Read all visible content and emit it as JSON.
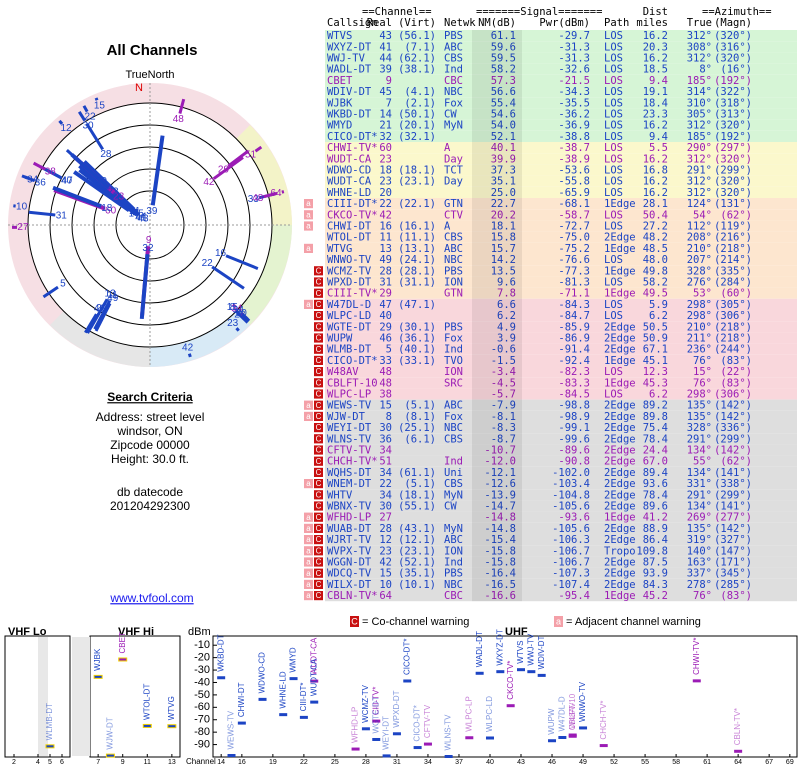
{
  "left": {
    "title": "All Channels",
    "north_caption": "TrueNorth",
    "north": "N",
    "criteria_title": "Search Criteria",
    "criteria": [
      "Address: street level",
      "windsor, ON",
      "Zipcode 00000",
      "Height: 30.0 ft."
    ],
    "datecode_label": "db datecode",
    "datecode": "201204292300",
    "link": "www.tvfool.com"
  },
  "table": {
    "group_headers": [
      "==Channel==",
      "=======Signal=======",
      "Dist",
      "==Azimuth=="
    ],
    "columns": [
      "Callsign",
      "Real",
      "(Virt)",
      "Netwk",
      "NM(dB)",
      "Pwr(dBm)",
      "Path",
      "miles",
      "True",
      "(Magn)"
    ],
    "rows": [
      [
        "WTVS",
        "43",
        "(56.1)",
        "PBS",
        "61.1",
        "-29.7",
        "LOS",
        "16.2",
        "312°",
        "(320°)"
      ],
      [
        "WXYZ-DT",
        "41",
        "(7.1)",
        "ABC",
        "59.6",
        "-31.3",
        "LOS",
        "20.3",
        "308°",
        "(316°)"
      ],
      [
        "WWJ-TV",
        "44",
        "(62.1)",
        "CBS",
        "59.5",
        "-31.3",
        "LOS",
        "16.2",
        "312°",
        "(320°)"
      ],
      [
        "WADL-DT",
        "39",
        "(38.1)",
        "Ind",
        "58.2",
        "-32.6",
        "LOS",
        "18.5",
        "8°",
        "(16°)"
      ],
      [
        "CBET",
        "9",
        null,
        "CBC",
        "57.3",
        "-21.5",
        "LOS",
        "9.4",
        "185°",
        "(192°)"
      ],
      [
        "WDIV-DT",
        "45",
        "(4.1)",
        "NBC",
        "56.6",
        "-34.3",
        "LOS",
        "19.1",
        "314°",
        "(322°)"
      ],
      [
        "WJBK",
        "7",
        "(2.1)",
        "Fox",
        "55.4",
        "-35.5",
        "LOS",
        "18.4",
        "310°",
        "(318°)"
      ],
      [
        "WKBD-DT",
        "14",
        "(50.1)",
        "CW",
        "54.6",
        "-36.2",
        "LOS",
        "23.3",
        "305°",
        "(313°)"
      ],
      [
        "WMYD",
        "21",
        "(20.1)",
        "MyN",
        "54.0",
        "-36.9",
        "LOS",
        "16.2",
        "312°",
        "(320°)"
      ],
      [
        "CICO-DT*",
        "32",
        "(32.1)",
        null,
        "52.1",
        "-38.8",
        "LOS",
        "9.4",
        "185°",
        "(192°)"
      ],
      [
        "CHWI-TV*",
        "60",
        null,
        "A",
        "40.1",
        "-38.7",
        "LOS",
        "5.5",
        "290°",
        "(297°)"
      ],
      [
        "WUDT-CA",
        "23",
        null,
        "Day",
        "39.9",
        "-38.9",
        "LOS",
        "16.2",
        "312°",
        "(320°)"
      ],
      [
        "WDWO-CD",
        "18",
        "(18.1)",
        "TCT",
        "37.3",
        "-53.6",
        "LOS",
        "16.8",
        "291°",
        "(299°)"
      ],
      [
        "WUDT-CA",
        "23",
        "(23.1)",
        "Day",
        "35.1",
        "-55.8",
        "LOS",
        "16.2",
        "312°",
        "(320°)"
      ],
      [
        "WHNE-LD",
        "20",
        null,
        null,
        "25.0",
        "-65.9",
        "LOS",
        "16.2",
        "312°",
        "(320°)"
      ],
      [
        "CIII-DT*",
        "22",
        "(22.1)",
        "GTN",
        "22.7",
        "-68.1",
        "1Edge",
        "28.1",
        "124°",
        "(131°)"
      ],
      [
        "CKCO-TV*",
        "42",
        null,
        "CTV",
        "20.2",
        "-58.7",
        "LOS",
        "50.4",
        "54°",
        "(62°)"
      ],
      [
        "CHWI-DT",
        "16",
        "(16.1)",
        "A",
        "18.1",
        "-72.7",
        "LOS",
        "27.2",
        "112°",
        "(119°)"
      ],
      [
        "WTOL-DT",
        "11",
        "(11.1)",
        "CBS",
        "15.8",
        "-75.0",
        "2Edge",
        "48.2",
        "208°",
        "(216°)"
      ],
      [
        "WTVG",
        "13",
        "(13.1)",
        "ABC",
        "15.7",
        "-75.2",
        "1Edge",
        "48.5",
        "210°",
        "(218°)"
      ],
      [
        "WNWO-TV",
        "49",
        "(24.1)",
        "NBC",
        "14.2",
        "-76.6",
        "LOS",
        "48.0",
        "207°",
        "(214°)"
      ],
      [
        "WCMZ-TV",
        "28",
        "(28.1)",
        "PBS",
        "13.5",
        "-77.3",
        "1Edge",
        "49.8",
        "328°",
        "(335°)"
      ],
      [
        "WPXD-DT",
        "31",
        "(31.1)",
        "ION",
        "9.6",
        "-81.3",
        "LOS",
        "58.2",
        "276°",
        "(284°)"
      ],
      [
        "CIII-TV*",
        "29",
        null,
        "GTN",
        "7.8",
        "-71.1",
        "1Edge",
        "49.5",
        "53°",
        "(60°)"
      ],
      [
        "W47DL-D",
        "47",
        "(47.1)",
        null,
        "6.6",
        "-84.3",
        "LOS",
        "5.9",
        "298°",
        "(305°)"
      ],
      [
        "WLPC-LD",
        "40",
        null,
        null,
        "6.2",
        "-84.7",
        "LOS",
        "6.2",
        "298°",
        "(306°)"
      ],
      [
        "WGTE-DT",
        "29",
        "(30.1)",
        "PBS",
        "4.9",
        "-85.9",
        "2Edge",
        "50.5",
        "210°",
        "(218°)"
      ],
      [
        "WUPW",
        "46",
        "(36.1)",
        "Fox",
        "3.9",
        "-86.9",
        "2Edge",
        "50.9",
        "211°",
        "(218°)"
      ],
      [
        "WLMB-DT",
        "5",
        "(40.1)",
        "Ind",
        "-0.6",
        "-91.4",
        "2Edge",
        "67.1",
        "236°",
        "(244°)"
      ],
      [
        "CICO-DT*",
        "33",
        "(33.1)",
        "TVO",
        "-1.5",
        "-92.4",
        "1Edge",
        "45.1",
        "76°",
        "(83°)"
      ],
      [
        "W48AV",
        "48",
        null,
        "ION",
        "-3.4",
        "-82.3",
        "LOS",
        "12.3",
        "15°",
        "(22°)"
      ],
      [
        "CBLFT-10",
        "48",
        null,
        "SRC",
        "-4.5",
        "-83.3",
        "1Edge",
        "45.3",
        "76°",
        "(83°)"
      ],
      [
        "WLPC-LP",
        "38",
        null,
        null,
        "-5.7",
        "-84.5",
        "LOS",
        "6.2",
        "298°",
        "(306°)"
      ],
      [
        "WEWS-TV",
        "15",
        "(5.1)",
        "ABC",
        "-7.9",
        "-98.8",
        "2Edge",
        "89.2",
        "135°",
        "(142°)"
      ],
      [
        "WJW-DT",
        "8",
        "(8.1)",
        "Fox",
        "-8.1",
        "-98.9",
        "2Edge",
        "89.8",
        "135°",
        "(142°)"
      ],
      [
        "WEYI-DT",
        "30",
        "(25.1)",
        "NBC",
        "-8.3",
        "-99.1",
        "2Edge",
        "75.4",
        "328°",
        "(336°)"
      ],
      [
        "WLNS-TV",
        "36",
        "(6.1)",
        "CBS",
        "-8.7",
        "-99.6",
        "2Edge",
        "78.4",
        "291°",
        "(299°)"
      ],
      [
        "CFTV-TV",
        "34",
        null,
        null,
        "-10.7",
        "-89.6",
        "2Edge",
        "24.4",
        "134°",
        "(142°)"
      ],
      [
        "CHCH-TV*",
        "51",
        null,
        "Ind",
        "-12.0",
        "-90.8",
        "2Edge",
        "67.0",
        "55°",
        "(62°)"
      ],
      [
        "WQHS-DT",
        "34",
        "(61.1)",
        "Uni",
        "-12.1",
        "-102.0",
        "2Edge",
        "89.4",
        "134°",
        "(141°)"
      ],
      [
        "WNEM-DT",
        "22",
        "(5.1)",
        "CBS",
        "-12.6",
        "-103.4",
        "2Edge",
        "93.6",
        "331°",
        "(338°)"
      ],
      [
        "WHTV",
        "34",
        "(18.1)",
        "MyN",
        "-13.9",
        "-104.8",
        "2Edge",
        "78.4",
        "291°",
        "(299°)"
      ],
      [
        "WBNX-TV",
        "30",
        "(55.1)",
        "CW",
        "-14.7",
        "-105.6",
        "2Edge",
        "89.6",
        "134°",
        "(141°)"
      ],
      [
        "WFHD-LP",
        "27",
        null,
        null,
        "-14.8",
        "-93.6",
        "1Edge",
        "41.2",
        "269°",
        "(277°)"
      ],
      [
        "WUAB-DT",
        "28",
        "(43.1)",
        "MyN",
        "-14.8",
        "-105.6",
        "2Edge",
        "88.9",
        "135°",
        "(142°)"
      ],
      [
        "WJRT-TV",
        "12",
        "(12.1)",
        "ABC",
        "-15.4",
        "-106.3",
        "2Edge",
        "86.4",
        "319°",
        "(327°)"
      ],
      [
        "WVPX-TV",
        "23",
        "(23.1)",
        "ION",
        "-15.8",
        "-106.7",
        "Tropo",
        "109.8",
        "140°",
        "(147°)"
      ],
      [
        "WGGN-DT",
        "42",
        "(52.1)",
        "Ind",
        "-15.8",
        "-106.7",
        "2Edge",
        "87.5",
        "163°",
        "(171°)"
      ],
      [
        "WDCQ-TV",
        "15",
        "(35.1)",
        "PBS",
        "-16.4",
        "-107.3",
        "2Edge",
        "93.9",
        "337°",
        "(345°)"
      ],
      [
        "WILX-DT",
        "10",
        "(10.1)",
        "NBC",
        "-16.5",
        "-107.4",
        "2Edge",
        "84.3",
        "278°",
        "(285°)"
      ],
      [
        "CBLN-TV*",
        "64",
        null,
        "CBC",
        "-16.6",
        "-95.4",
        "1Edge",
        "45.2",
        "76°",
        "(83°)"
      ]
    ],
    "bg": [
      "#d6f5d6",
      "#d6f5d6",
      "#d6f5d6",
      "#d6f5d6",
      "#d6f5d6",
      "#d6f5d6",
      "#d6f5d6",
      "#d6f5d6",
      "#d6f5d6",
      "#d6f5d6",
      "#fbf8cc",
      "#fbf8cc",
      "#fbf8cc",
      "#fbf8cc",
      "#fbf8cc",
      "#fde6cf",
      "#fde6cf",
      "#fde6cf",
      "#fde6cf",
      "#fde6cf",
      "#fde6cf",
      "#fde6cf",
      "#fde6cf",
      "#fde6cf",
      "#f9d7dc",
      "#f9d7dc",
      "#f9d7dc",
      "#f9d7dc",
      "#f9d7dc",
      "#f9d7dc",
      "#f9d7dc",
      "#f9d7dc",
      "#f9d7dc",
      "#dedede",
      "#dedede",
      "#dedede",
      "#dedede",
      "#dedede",
      "#dedede",
      "#dedede",
      "#dedede",
      "#dedede",
      "#dedede",
      "#dedede",
      "#dedede",
      "#dedede",
      "#dedede",
      "#dedede",
      "#dedede",
      "#dedede",
      "#dedede"
    ],
    "fg": [
      "#1c44c4",
      "#1c44c4",
      "#1c44c4",
      "#1c44c4",
      "#9b1bb5",
      "#1c44c4",
      "#1c44c4",
      "#1c44c4",
      "#1c44c4",
      "#1c44c4",
      "#9b1bb5",
      "#9b1bb5",
      "#1c44c4",
      "#1c44c4",
      "#1c44c4",
      "#1c44c4",
      "#9b1bb5",
      "#1c44c4",
      "#1c44c4",
      "#1c44c4",
      "#1c44c4",
      "#1c44c4",
      "#1c44c4",
      "#9b1bb5",
      "#1c44c4",
      "#1c44c4",
      "#1c44c4",
      "#1c44c4",
      "#1c44c4",
      "#1c44c4",
      "#9b1bb5",
      "#9b1bb5",
      "#9b1bb5",
      "#1c44c4",
      "#1c44c4",
      "#1c44c4",
      "#1c44c4",
      "#9b1bb5",
      "#9b1bb5",
      "#1c44c4",
      "#1c44c4",
      "#1c44c4",
      "#1c44c4",
      "#9b1bb5",
      "#1c44c4",
      "#1c44c4",
      "#1c44c4",
      "#1c44c4",
      "#1c44c4",
      "#1c44c4",
      "#9b1bb5"
    ],
    "flags": [
      [],
      [],
      [],
      [],
      [],
      [],
      [],
      [],
      [],
      [],
      [],
      [],
      [],
      [],
      [],
      [
        "a"
      ],
      [
        "a"
      ],
      [
        "a"
      ],
      [],
      [
        "a"
      ],
      [],
      [
        "C"
      ],
      [
        "C"
      ],
      [
        "C"
      ],
      [
        "C",
        "a"
      ],
      [
        "C"
      ],
      [
        "C"
      ],
      [
        "C"
      ],
      [
        "C"
      ],
      [
        "C"
      ],
      [
        "C"
      ],
      [
        "C"
      ],
      [
        "C"
      ],
      [
        "C",
        "a"
      ],
      [
        "C",
        "a"
      ],
      [
        "C"
      ],
      [
        "C"
      ],
      [
        "C"
      ],
      [
        "C"
      ],
      [
        "C"
      ],
      [
        "C",
        "a"
      ],
      [
        "C"
      ],
      [
        "C"
      ],
      [
        "C",
        "a"
      ],
      [
        "C",
        "a"
      ],
      [
        "C",
        "a"
      ],
      [
        "C",
        "a"
      ],
      [
        "C",
        "a"
      ],
      [
        "C",
        "a"
      ],
      [
        "C",
        "a"
      ],
      [
        "C",
        "a"
      ]
    ]
  },
  "legend": {
    "co_mark": "C",
    "co_text": "= Co-channel warning",
    "adj_mark": "a",
    "adj_text": "= Adjacent channel warning"
  },
  "spectrum": {
    "y_label": "dBm",
    "x_label": "Channel",
    "ylim": [
      -5,
      -100
    ],
    "yticks": [
      -10,
      -20,
      -30,
      -40,
      -50,
      -60,
      -70,
      -80,
      -90
    ],
    "panels": [
      {
        "title": "VHF Lo",
        "xlim": [
          1.5,
          6.5
        ],
        "xticks": [
          2,
          4,
          5,
          6
        ]
      },
      {
        "title": "VHF Hi",
        "xlim": [
          6.5,
          13.5
        ],
        "xticks": [
          7,
          9,
          11,
          13
        ]
      },
      {
        "title": "UHF",
        "xlim": [
          13.5,
          69.5
        ],
        "xticks": [
          14,
          16,
          19,
          22,
          25,
          28,
          31,
          34,
          37,
          40,
          43,
          46,
          49,
          52,
          55,
          58,
          61,
          64,
          67,
          69
        ]
      }
    ]
  }
}
